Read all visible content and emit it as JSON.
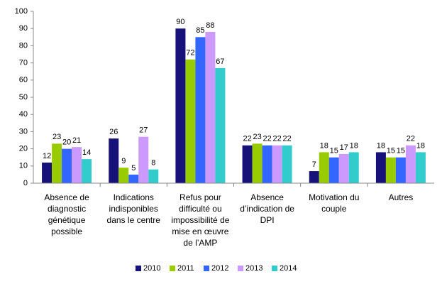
{
  "chart_data": {
    "type": "bar",
    "categories": [
      "Absence de diagnostic génétique possible",
      "Indications indisponibles dans le centre",
      "Refus pour difficulté ou impossibilité de mise en œuvre de l’AMP",
      "Absence d’indication de DPI",
      "Motivation du couple",
      "Autres"
    ],
    "series": [
      {
        "name": "2010",
        "color": "#16127a",
        "values": [
          12,
          26,
          90,
          22,
          7,
          18
        ]
      },
      {
        "name": "2011",
        "color": "#99cc00",
        "values": [
          23,
          9,
          72,
          23,
          18,
          15
        ]
      },
      {
        "name": "2012",
        "color": "#3366ff",
        "values": [
          20,
          5,
          85,
          22,
          15,
          15
        ]
      },
      {
        "name": "2013",
        "color": "#cc99ff",
        "values": [
          21,
          27,
          88,
          22,
          17,
          22
        ]
      },
      {
        "name": "2014",
        "color": "#33cccc",
        "values": [
          14,
          8,
          67,
          22,
          18,
          18
        ]
      }
    ],
    "ylim": [
      0,
      100
    ],
    "yticks": [
      0,
      10,
      20,
      30,
      40,
      50,
      60,
      70,
      80,
      90,
      100
    ],
    "grid": false
  }
}
